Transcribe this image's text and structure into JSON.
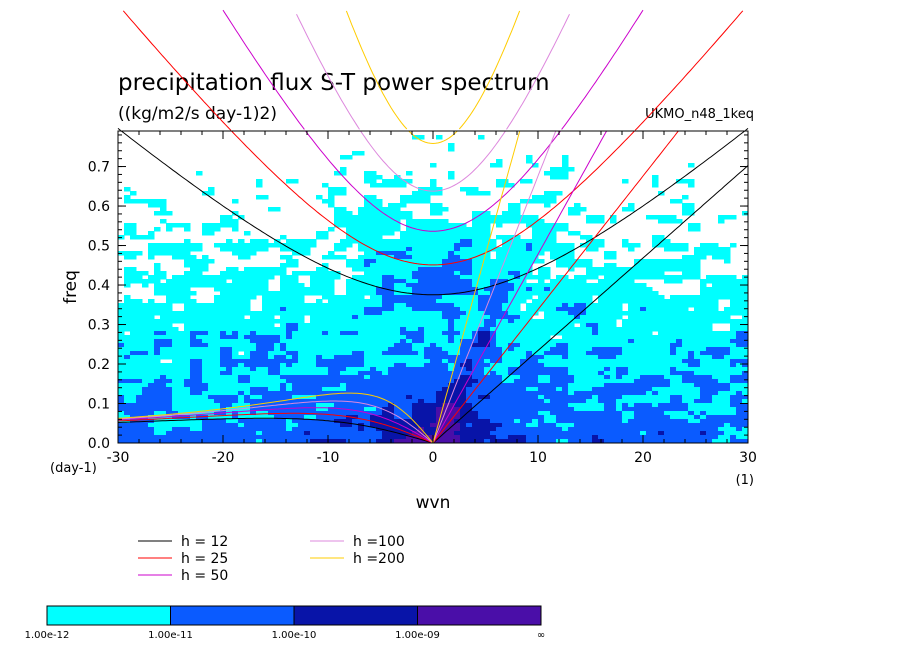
{
  "chart_data": {
    "type": "heatmap",
    "title": "precipitation flux S-T power spectrum",
    "subtitle": "((kg/m2/s day-1)2)",
    "annotation": "UKMO_n48_1keq",
    "xlabel": "wvn",
    "ylabel": "freq",
    "x_unit": "(1)",
    "y_unit": "(day-1)",
    "xlim": [
      -30,
      30
    ],
    "ylim": [
      0,
      0.79
    ],
    "x_ticks": [
      -30,
      -20,
      -10,
      0,
      10,
      20,
      30
    ],
    "x_tick_labels": [
      "-30",
      "-20",
      "-10",
      "0",
      "10",
      "20",
      "30"
    ],
    "y_ticks": [
      0,
      0.1,
      0.2,
      0.3,
      0.4,
      0.5,
      0.6,
      0.7
    ],
    "y_tick_labels": [
      "0.0",
      "0.1",
      "0.2",
      "0.3",
      "0.4",
      "0.5",
      "0.6",
      "0.7"
    ],
    "grid": false,
    "colorbar": {
      "levels": [
        "1.00e-12",
        "1.00e-11",
        "1.00e-10",
        "1.00e-09",
        "∞"
      ],
      "colors": [
        "#00ffff",
        "#0a5bff",
        "#0814a8",
        "#4a0ea8"
      ]
    },
    "series": [
      {
        "name": "h = 12",
        "h": 12,
        "color": "#000000"
      },
      {
        "name": "h = 25",
        "h": 25,
        "color": "#ff0000"
      },
      {
        "name": "h = 50",
        "h": 50,
        "color": "#cc00cc"
      },
      {
        "name": "h =100",
        "h": 100,
        "color": "#dd88dd"
      },
      {
        "name": "h =200",
        "h": 200,
        "color": "#ffcc00"
      }
    ]
  }
}
